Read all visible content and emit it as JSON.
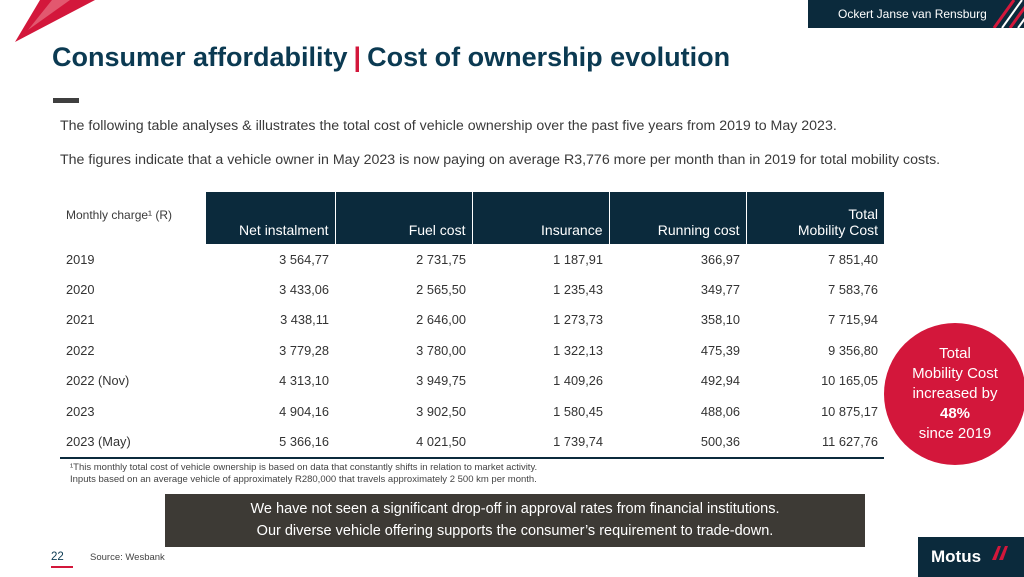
{
  "header": {
    "presenter": "Ockert Janse van Rensburg",
    "title_left": "Consumer affordability",
    "title_sep": "|",
    "title_right": "Cost of ownership evolution"
  },
  "intro": {
    "p1": "The following table analyses & illustrates the total cost of vehicle ownership over the past five years from 2019 to May 2023.",
    "p2": "The figures indicate that a vehicle owner in May 2023 is now paying on average R3,776 more per month than in 2019 for total mobility costs."
  },
  "table": {
    "headers": [
      "Monthly charge¹ (R)",
      "Net instalment",
      "Fuel cost",
      "Insurance",
      "Running cost",
      "Total Mobility Cost"
    ],
    "header_total_line1": "Total",
    "header_total_line2": "Mobility Cost",
    "rows": [
      [
        "2019",
        "3 564,77",
        "2 731,75",
        "1 187,91",
        "366,97",
        "7 851,40"
      ],
      [
        "2020",
        "3 433,06",
        "2 565,50",
        "1 235,43",
        "349,77",
        "7 583,76"
      ],
      [
        "2021",
        "3 438,11",
        "2 646,00",
        "1 273,73",
        "358,10",
        "7 715,94"
      ],
      [
        "2022",
        "3 779,28",
        "3 780,00",
        "1 322,13",
        "475,39",
        "9 356,80"
      ],
      [
        "2022 (Nov)",
        "4 313,10",
        "3 949,75",
        "1 409,26",
        "492,94",
        "10 165,05"
      ],
      [
        "2023",
        "4 904,16",
        "3 902,50",
        "1 580,45",
        "488,06",
        "10 875,17"
      ],
      [
        "2023 (May)",
        "5 366,16",
        "4 021,50",
        "1 739,74",
        "500,36",
        "11 627,76"
      ]
    ]
  },
  "footnote": {
    "line1": "¹This monthly total cost of vehicle ownership is based on data that constantly shifts in relation to market activity.",
    "line2": "Inputs based on an average vehicle of approximately R280,000 that travels approximately 2 500 km per month."
  },
  "badge": {
    "line1": "Total",
    "line2": "Mobility Cost",
    "line3": "increased by",
    "line4": "48%",
    "line5": "since 2019"
  },
  "banner": {
    "line1": "We have not seen a significant drop-off in approval rates from financial institutions.",
    "line2": "Our diverse vehicle offering supports the consumer’s requirement to trade-down."
  },
  "footer": {
    "page_number": "22",
    "source": "Source: Wesbank",
    "logo": "Motus"
  },
  "colors": {
    "navy": "#0b2a3c",
    "title_blue": "#0b3a52",
    "accent_red": "#d3173b",
    "banner_grey": "#3d3a35"
  },
  "icons": {
    "corner": "red-triangle-decoration",
    "stripes": "diagonal-stripes-decoration",
    "logo_mark": "motus-chevron-mark"
  }
}
